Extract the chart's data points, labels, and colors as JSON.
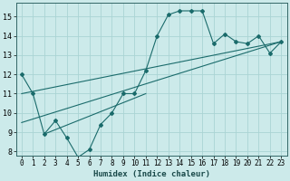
{
  "xlabel": "Humidex (Indice chaleur)",
  "bg_color": "#cceaea",
  "grid_color": "#aad4d4",
  "line_color": "#1a6b6b",
  "xlim": [
    -0.5,
    23.5
  ],
  "ylim": [
    7.8,
    15.7
  ],
  "yticks": [
    8,
    9,
    10,
    11,
    12,
    13,
    14,
    15
  ],
  "xticks": [
    0,
    1,
    2,
    3,
    4,
    5,
    6,
    7,
    8,
    9,
    10,
    11,
    12,
    13,
    14,
    15,
    16,
    17,
    18,
    19,
    20,
    21,
    22,
    23
  ],
  "curve1_x": [
    0,
    1,
    2,
    3,
    4,
    5,
    6,
    7,
    8,
    9,
    10,
    11,
    12,
    13,
    14,
    15,
    16,
    17,
    18,
    19,
    20,
    21,
    22,
    23
  ],
  "curve1_y": [
    12.0,
    11.0,
    8.9,
    9.6,
    8.7,
    7.7,
    8.1,
    9.4,
    10.0,
    11.0,
    11.0,
    12.2,
    14.0,
    15.1,
    15.3,
    15.3,
    15.3,
    13.6,
    14.1,
    13.7,
    13.6,
    14.0,
    13.1,
    13.7
  ],
  "line2_x": [
    0,
    23
  ],
  "line2_y": [
    11.0,
    13.7
  ],
  "line3_x": [
    0,
    23
  ],
  "line3_y": [
    9.5,
    13.7
  ],
  "line4_x": [
    2,
    11
  ],
  "line4_y": [
    8.9,
    11.0
  ]
}
